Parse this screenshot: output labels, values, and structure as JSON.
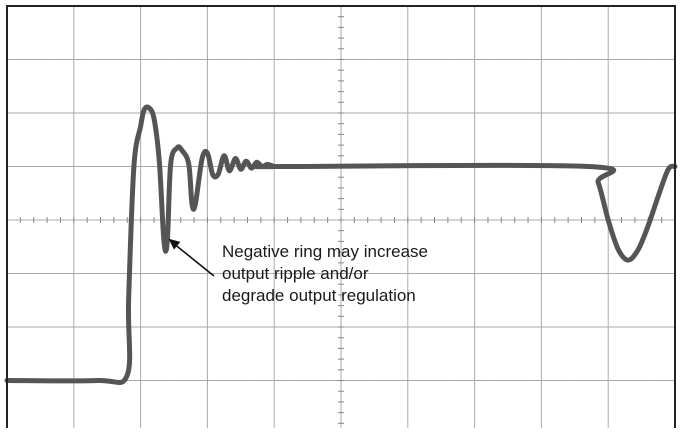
{
  "chart_data": {
    "type": "line",
    "title": "",
    "xlabel": "",
    "ylabel": "",
    "grid": true,
    "grid_divisions": {
      "x": 10,
      "y": 8
    },
    "xlim": [
      0,
      10
    ],
    "ylim": [
      -4,
      4
    ],
    "series": [
      {
        "name": "",
        "color": "#555555",
        "x": [
          0,
          1.35,
          1.8,
          1.82,
          1.9,
          2.0,
          2.05,
          2.12,
          2.2,
          2.28,
          2.35,
          2.4,
          2.45,
          2.55,
          2.62,
          2.72,
          2.77,
          2.82,
          2.92,
          3.0,
          3.08,
          3.16,
          3.25,
          3.33,
          3.42,
          3.5,
          3.58,
          3.66,
          3.74,
          3.82,
          3.9,
          4.0,
          4.1,
          8.7,
          8.85,
          9.0,
          9.15,
          9.3,
          9.45,
          9.6,
          9.75,
          9.9,
          10
        ],
        "y": [
          -3.0,
          -3.0,
          -2.9,
          -1.5,
          1.0,
          1.75,
          2.05,
          2.1,
          1.9,
          1.1,
          -0.4,
          -0.4,
          1.05,
          1.35,
          1.3,
          1.05,
          0.3,
          0.3,
          1.15,
          1.25,
          0.85,
          0.85,
          1.2,
          0.92,
          1.15,
          0.95,
          1.1,
          0.97,
          1.08,
          1.0,
          1.04,
          1.0,
          1.0,
          1.0,
          0.7,
          0.0,
          -0.55,
          -0.75,
          -0.55,
          -0.1,
          0.45,
          0.95,
          1.0
        ]
      }
    ],
    "annotations": [
      {
        "text": "Negative ring may increase\noutput ripple and/or\ndegrade output regulation",
        "points_to": {
          "x": 2.42,
          "y": -0.35
        }
      }
    ]
  }
}
